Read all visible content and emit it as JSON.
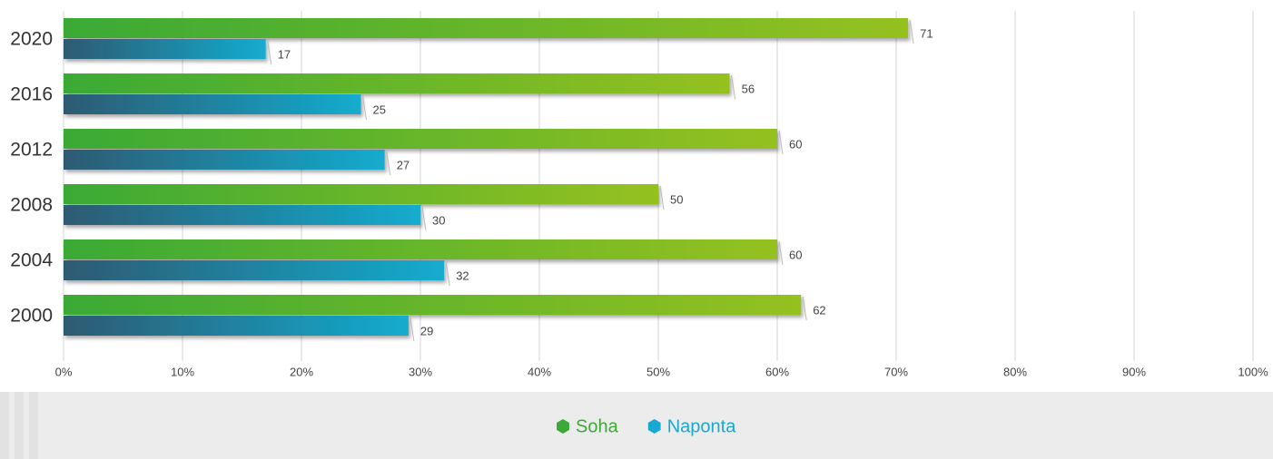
{
  "chart_data": {
    "type": "bar",
    "orientation": "horizontal",
    "categories": [
      "2020",
      "2016",
      "2012",
      "2008",
      "2004",
      "2000"
    ],
    "series": [
      {
        "name": "Soha",
        "color": "#3aaa35",
        "gradient": [
          "#3aaa35",
          "#95c11f"
        ],
        "values": [
          71,
          56,
          60,
          50,
          60,
          62
        ]
      },
      {
        "name": "Naponta",
        "color": "#17a9d1",
        "gradient": [
          "#2e5a72",
          "#12accf"
        ],
        "values": [
          17,
          25,
          27,
          30,
          32,
          29
        ]
      }
    ],
    "xlim": [
      0,
      100
    ],
    "xticks": [
      {
        "value": 0,
        "label": "0%"
      },
      {
        "value": 10,
        "label": "10%"
      },
      {
        "value": 20,
        "label": "20%"
      },
      {
        "value": 30,
        "label": "30%"
      },
      {
        "value": 40,
        "label": "40%"
      },
      {
        "value": 50,
        "label": "50%"
      },
      {
        "value": 60,
        "label": "60%"
      },
      {
        "value": 70,
        "label": "70%"
      },
      {
        "value": 80,
        "label": "80%"
      },
      {
        "value": 90,
        "label": "90%"
      },
      {
        "value": 100,
        "label": "100%"
      }
    ],
    "grid": true,
    "legend": "bottom"
  }
}
